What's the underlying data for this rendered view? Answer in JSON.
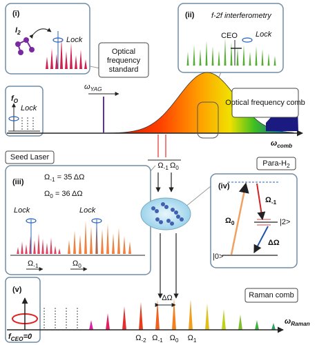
{
  "panel_i": {
    "label": "(i)",
    "molecule": {
      "base": "I",
      "sub": "2"
    },
    "lock": "Lock"
  },
  "standard_box": {
    "lines": [
      "Optical",
      "frequency",
      "standard"
    ]
  },
  "panel_ii": {
    "label": "(ii)",
    "title": "f-2f interferometry",
    "ceo": "CEO",
    "lock": "Lock"
  },
  "panel_f0": {
    "symbol": {
      "base": "f",
      "sub": "O"
    },
    "lock": "Lock"
  },
  "spectrum": {
    "yag": {
      "base": "ω",
      "sub": "YAG"
    },
    "axis": {
      "base": "ω",
      "sub": "comb"
    },
    "comb_box": "Optical frequency comb"
  },
  "seed": {
    "title": "Seed Laser",
    "lines": [
      {
        "base": "Ω",
        "sub": "-1"
      },
      {
        "base": "Ω",
        "sub": "0"
      }
    ]
  },
  "panel_iii": {
    "label": "(iii)",
    "eq1": {
      "base": "Ω",
      "sub": "-1",
      "rest": " = 35 ΔΩ"
    },
    "eq0": {
      "base": "Ω",
      "sub": "0",
      "rest": " = 36 ΔΩ"
    },
    "lock_left": "Lock",
    "lock_right": "Lock",
    "axis_left": {
      "base": "Ω",
      "sub": "-1"
    },
    "axis_right": {
      "base": "Ω",
      "sub": "0"
    }
  },
  "panel_iv": {
    "label": "(iv)",
    "title": {
      "base": "Para-H",
      "sub": "2"
    },
    "pump": {
      "base": "Ω",
      "sub": "0"
    },
    "stokes": {
      "base": "Ω",
      "sub": "-1"
    },
    "upper": "|2>",
    "lower": "|0>",
    "delta": "ΔΩ"
  },
  "panel_v": {
    "label": "(v)",
    "fceo": {
      "base": "f",
      "sub": "CEO",
      "rest": "=0"
    },
    "spacing": "ΔΩ",
    "title": "Raman comb",
    "axis": {
      "base": "ω",
      "sub": "Raman"
    },
    "lines": [
      {
        "base": "Ω",
        "sub": "-2"
      },
      {
        "base": "Ω",
        "sub": "-1"
      },
      {
        "base": "Ω",
        "sub": "0"
      },
      {
        "base": "Ω",
        "sub": "1"
      }
    ]
  }
}
